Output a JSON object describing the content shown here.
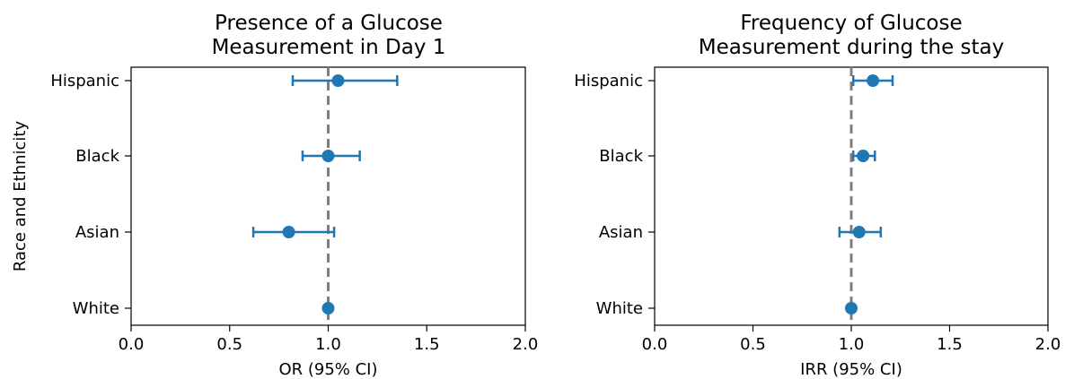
{
  "chart_data": [
    {
      "type": "scatter",
      "title_lines": [
        "Presence of a Glucose",
        "Measurement in Day 1"
      ],
      "xlabel": "OR (95% CI)",
      "ylabel": "Race and Ethnicity",
      "xlim": [
        0.0,
        2.0
      ],
      "xticks": [
        0.0,
        0.5,
        1.0,
        1.5,
        2.0
      ],
      "xtick_labels": [
        "0.0",
        "0.5",
        "1.0",
        "1.5",
        "2.0"
      ],
      "reference_line": 1.0,
      "color": "#1f77b4",
      "categories": [
        "Hispanic",
        "Black",
        "Asian",
        "White"
      ],
      "estimates": [
        1.05,
        1.0,
        0.8,
        1.0
      ],
      "ci_lower": [
        0.82,
        0.87,
        0.62,
        null
      ],
      "ci_upper": [
        1.35,
        1.16,
        1.03,
        null
      ]
    },
    {
      "type": "scatter",
      "title_lines": [
        "Frequency of Glucose",
        "Measurement during the stay"
      ],
      "xlabel": "IRR (95% CI)",
      "ylabel": "",
      "xlim": [
        0.0,
        2.0
      ],
      "xticks": [
        0.0,
        0.5,
        1.0,
        1.5,
        2.0
      ],
      "xtick_labels": [
        "0.0",
        "0.5",
        "1.0",
        "1.5",
        "2.0"
      ],
      "reference_line": 1.0,
      "color": "#1f77b4",
      "categories": [
        "Hispanic",
        "Black",
        "Asian",
        "White"
      ],
      "estimates": [
        1.11,
        1.06,
        1.04,
        1.0
      ],
      "ci_lower": [
        1.01,
        1.01,
        0.94,
        null
      ],
      "ci_upper": [
        1.21,
        1.12,
        1.15,
        null
      ]
    }
  ]
}
